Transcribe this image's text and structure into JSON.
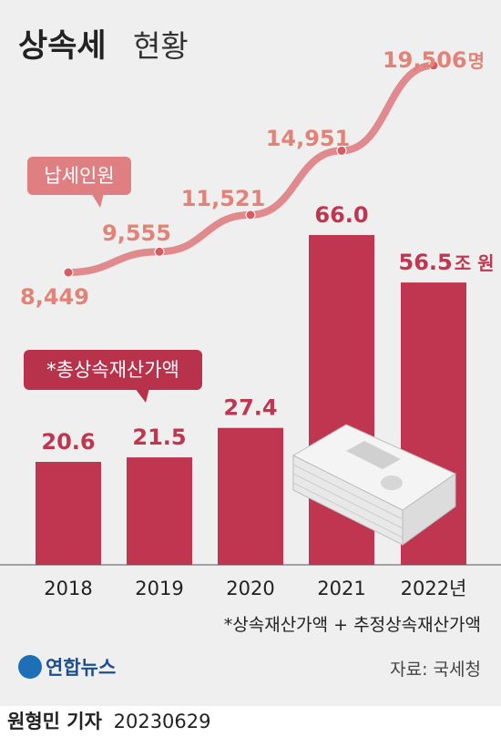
{
  "title": {
    "main": "상속세",
    "sub": "현황"
  },
  "chart_data": {
    "type": "bar",
    "categories": [
      "2018",
      "2019",
      "2020",
      "2021",
      "2022년"
    ],
    "series": [
      {
        "name": "*총상속재산가액",
        "type": "bar",
        "values": [
          20.6,
          21.5,
          27.4,
          66.0,
          56.5
        ],
        "value_labels": [
          "20.6",
          "21.5",
          "27.4",
          "66.0",
          "56.5"
        ],
        "unit_label": "조 원"
      },
      {
        "name": "납세인원",
        "type": "line",
        "values": [
          8449,
          9555,
          11521,
          14951,
          19506
        ],
        "value_labels": [
          "8,449",
          "9,555",
          "11,521",
          "14,951",
          "19,506"
        ],
        "unit_label": "명"
      }
    ],
    "colors": {
      "bar": "#c0354f",
      "line": "#e08a8d",
      "line_label": "#e38277"
    }
  },
  "footnote": "*상속재산가액 + 추정상속재산가액",
  "logo": "연합뉴스",
  "source": "자료: 국세청",
  "byline": {
    "name": "원형민 기자",
    "date": "20230629"
  }
}
